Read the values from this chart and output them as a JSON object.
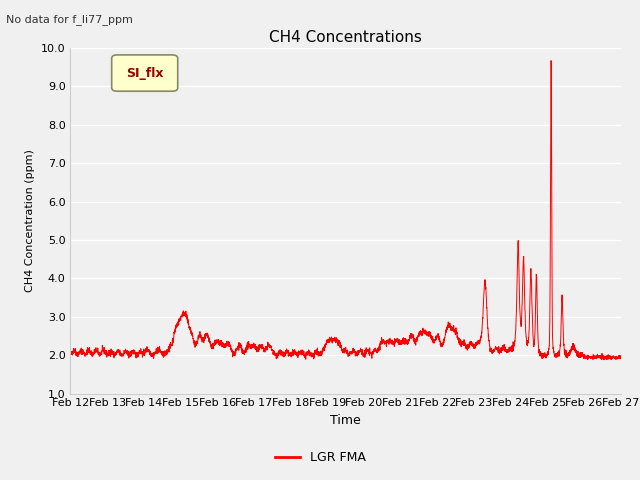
{
  "title": "CH4 Concentrations",
  "subtitle": "No data for f_li77_ppm",
  "xlabel": "Time",
  "ylabel": "CH4 Concentration (ppm)",
  "ylim": [
    1.0,
    10.0
  ],
  "yticks": [
    1.0,
    2.0,
    3.0,
    4.0,
    5.0,
    6.0,
    7.0,
    8.0,
    9.0,
    10.0
  ],
  "line_color": "#ff0000",
  "line_label": "LGR FMA",
  "legend_label": "SI_flx",
  "legend_box_facecolor": "#ffffcc",
  "legend_box_edgecolor": "#aaaaaa",
  "fig_facecolor": "#f0f0f0",
  "plot_facecolor": "#f0f0f0",
  "grid_color": "#ffffff",
  "xtick_labels": [
    "Feb 12",
    "Feb 13",
    "Feb 14",
    "Feb 15",
    "Feb 16",
    "Feb 17",
    "Feb 18",
    "Feb 19",
    "Feb 20",
    "Feb 21",
    "Feb 22",
    "Feb 23",
    "Feb 24",
    "Feb 25",
    "Feb 26",
    "Feb 27"
  ]
}
